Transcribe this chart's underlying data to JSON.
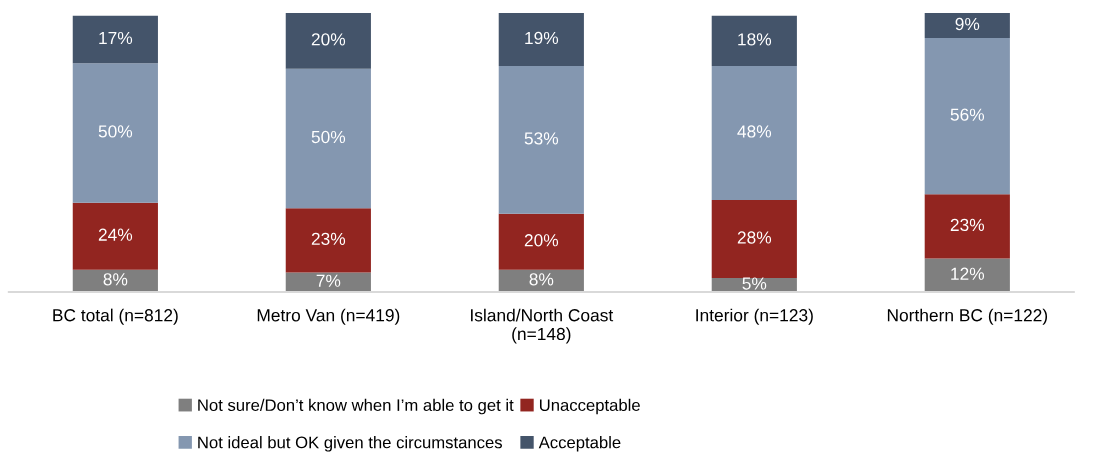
{
  "chart_data": {
    "type": "bar",
    "stacked": true,
    "categories": [
      "BC total (n=812)",
      "Metro Van (n=419)",
      "Island/North Coast\n(n=148)",
      "Interior (n=123)",
      "Northern BC (n=122)"
    ],
    "series": [
      {
        "name": "Not sure/Don’t know when I’m able to get it",
        "color": "#7f7f7f",
        "values": [
          8,
          7,
          8,
          5,
          12
        ],
        "value_labels": [
          "8%",
          "7%",
          "8%",
          "5%",
          "12%"
        ]
      },
      {
        "name": "Unacceptable",
        "color": "#922520",
        "values": [
          24,
          23,
          20,
          28,
          23
        ],
        "value_labels": [
          "24%",
          "23%",
          "20%",
          "28%",
          "23%"
        ]
      },
      {
        "name": "Not ideal but OK given the circumstances",
        "color": "#8497b0",
        "values": [
          50,
          50,
          53,
          48,
          56
        ],
        "value_labels": [
          "50%",
          "50%",
          "53%",
          "48%",
          "56%"
        ]
      },
      {
        "name": "Acceptable",
        "color": "#44546a",
        "values": [
          17,
          20,
          19,
          18,
          9
        ],
        "value_labels": [
          "17%",
          "20%",
          "19%",
          "18%",
          "9%"
        ]
      }
    ],
    "ylim": [
      0,
      100
    ],
    "tick_labels": "x",
    "legend": "bottom"
  }
}
